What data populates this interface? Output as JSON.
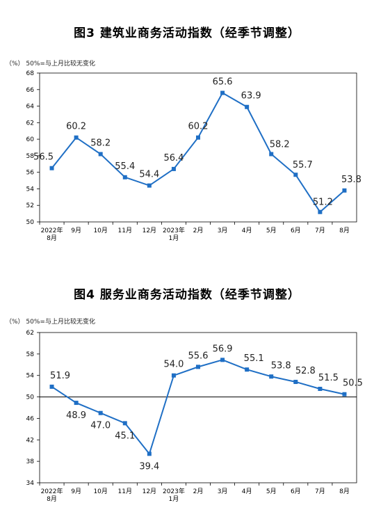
{
  "chart_data": [
    {
      "type": "line",
      "title": "图3  建筑业商务活动指数（经季节调整）",
      "unit_note": "（%）  50%=与上月比较无变化",
      "x_ticks": [
        [
          "2022年",
          "8月"
        ],
        [
          "9月"
        ],
        [
          "10月"
        ],
        [
          "11月"
        ],
        [
          "12月"
        ],
        [
          "2023年",
          "1月"
        ],
        [
          "2月"
        ],
        [
          "3月"
        ],
        [
          "4月"
        ],
        [
          "5月"
        ],
        [
          "6月"
        ],
        [
          "7月"
        ],
        [
          "8月"
        ]
      ],
      "ylim": [
        50,
        68
      ],
      "y_ticks": [
        50,
        52,
        54,
        56,
        58,
        60,
        62,
        64,
        66,
        68
      ],
      "baseline": null,
      "color": "#1f6fc5",
      "series": [
        {
          "values": [
            56.5,
            60.2,
            58.2,
            55.4,
            54.4,
            56.4,
            60.2,
            65.6,
            63.9,
            58.2,
            55.7,
            51.2,
            53.8
          ]
        }
      ]
    },
    {
      "type": "line",
      "title": "图4  服务业商务活动指数（经季节调整）",
      "unit_note": "（%）  50%=与上月比较无变化",
      "x_ticks": [
        [
          "2022年",
          "8月"
        ],
        [
          "9月"
        ],
        [
          "10月"
        ],
        [
          "11月"
        ],
        [
          "12月"
        ],
        [
          "2023年",
          "1月"
        ],
        [
          "2月"
        ],
        [
          "3月"
        ],
        [
          "4月"
        ],
        [
          "5月"
        ],
        [
          "6月"
        ],
        [
          "7月"
        ],
        [
          "8月"
        ]
      ],
      "ylim": [
        34,
        62
      ],
      "y_ticks": [
        34,
        38,
        42,
        46,
        50,
        54,
        58,
        62
      ],
      "baseline": 50,
      "color": "#1f6fc5",
      "series": [
        {
          "values": [
            51.9,
            48.9,
            47.0,
            45.1,
            39.4,
            54.0,
            55.6,
            56.9,
            55.1,
            53.8,
            52.8,
            51.5,
            50.5
          ]
        }
      ]
    }
  ]
}
